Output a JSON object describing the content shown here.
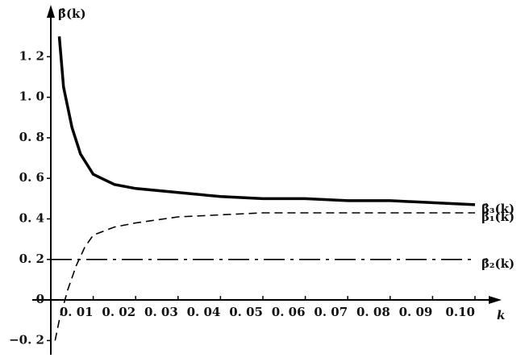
{
  "chart_data": {
    "type": "line",
    "y_label": "β̂(k)",
    "x_label": "k",
    "xlim": [
      0,
      0.104
    ],
    "ylim": [
      -0.27,
      1.42
    ],
    "xticks": [
      {
        "value": 0.01,
        "label": "0. 01"
      },
      {
        "value": 0.02,
        "label": "0. 02"
      },
      {
        "value": 0.03,
        "label": "0. 03"
      },
      {
        "value": 0.04,
        "label": "0. 04"
      },
      {
        "value": 0.05,
        "label": "0. 05"
      },
      {
        "value": 0.06,
        "label": "0. 06"
      },
      {
        "value": 0.07,
        "label": "0. 07"
      },
      {
        "value": 0.08,
        "label": "0. 08"
      },
      {
        "value": 0.09,
        "label": "0. 09"
      },
      {
        "value": 0.1,
        "label": "0.10"
      }
    ],
    "yticks": [
      {
        "value": -0.2,
        "label": "−0. 2"
      },
      0,
      {
        "value": 0.2,
        "label": "0. 2"
      },
      {
        "value": 0.4,
        "label": "0. 4"
      },
      {
        "value": 0.6,
        "label": "0. 6"
      },
      {
        "value": 0.8,
        "label": "0. 8"
      },
      {
        "value": 1.0,
        "label": "1. 0"
      },
      {
        "value": 1.2,
        "label": "1. 2"
      }
    ],
    "series": [
      {
        "name": "β̂₃(k)",
        "color": "#000000",
        "style": "solid",
        "x": [
          0.002,
          0.003,
          0.005,
          0.007,
          0.01,
          0.015,
          0.02,
          0.03,
          0.04,
          0.05,
          0.06,
          0.07,
          0.08,
          0.09,
          0.1
        ],
        "values": [
          1.3,
          1.05,
          0.85,
          0.72,
          0.62,
          0.57,
          0.55,
          0.53,
          0.51,
          0.5,
          0.5,
          0.49,
          0.49,
          0.48,
          0.47
        ]
      },
      {
        "name": "β̂₁(k)",
        "color": "#000000",
        "style": "dashed",
        "x": [
          0.001,
          0.002,
          0.004,
          0.006,
          0.008,
          0.01,
          0.015,
          0.02,
          0.03,
          0.04,
          0.05,
          0.06,
          0.07,
          0.08,
          0.09,
          0.1
        ],
        "values": [
          -0.2,
          -0.1,
          0.05,
          0.17,
          0.26,
          0.32,
          0.36,
          0.38,
          0.41,
          0.42,
          0.43,
          0.43,
          0.43,
          0.43,
          0.43,
          0.43
        ]
      },
      {
        "name": "β̂₂(k)",
        "color": "#000000",
        "style": "dashdot",
        "x": [
          0,
          0.1
        ],
        "values": [
          0.2,
          0.2
        ]
      }
    ]
  }
}
